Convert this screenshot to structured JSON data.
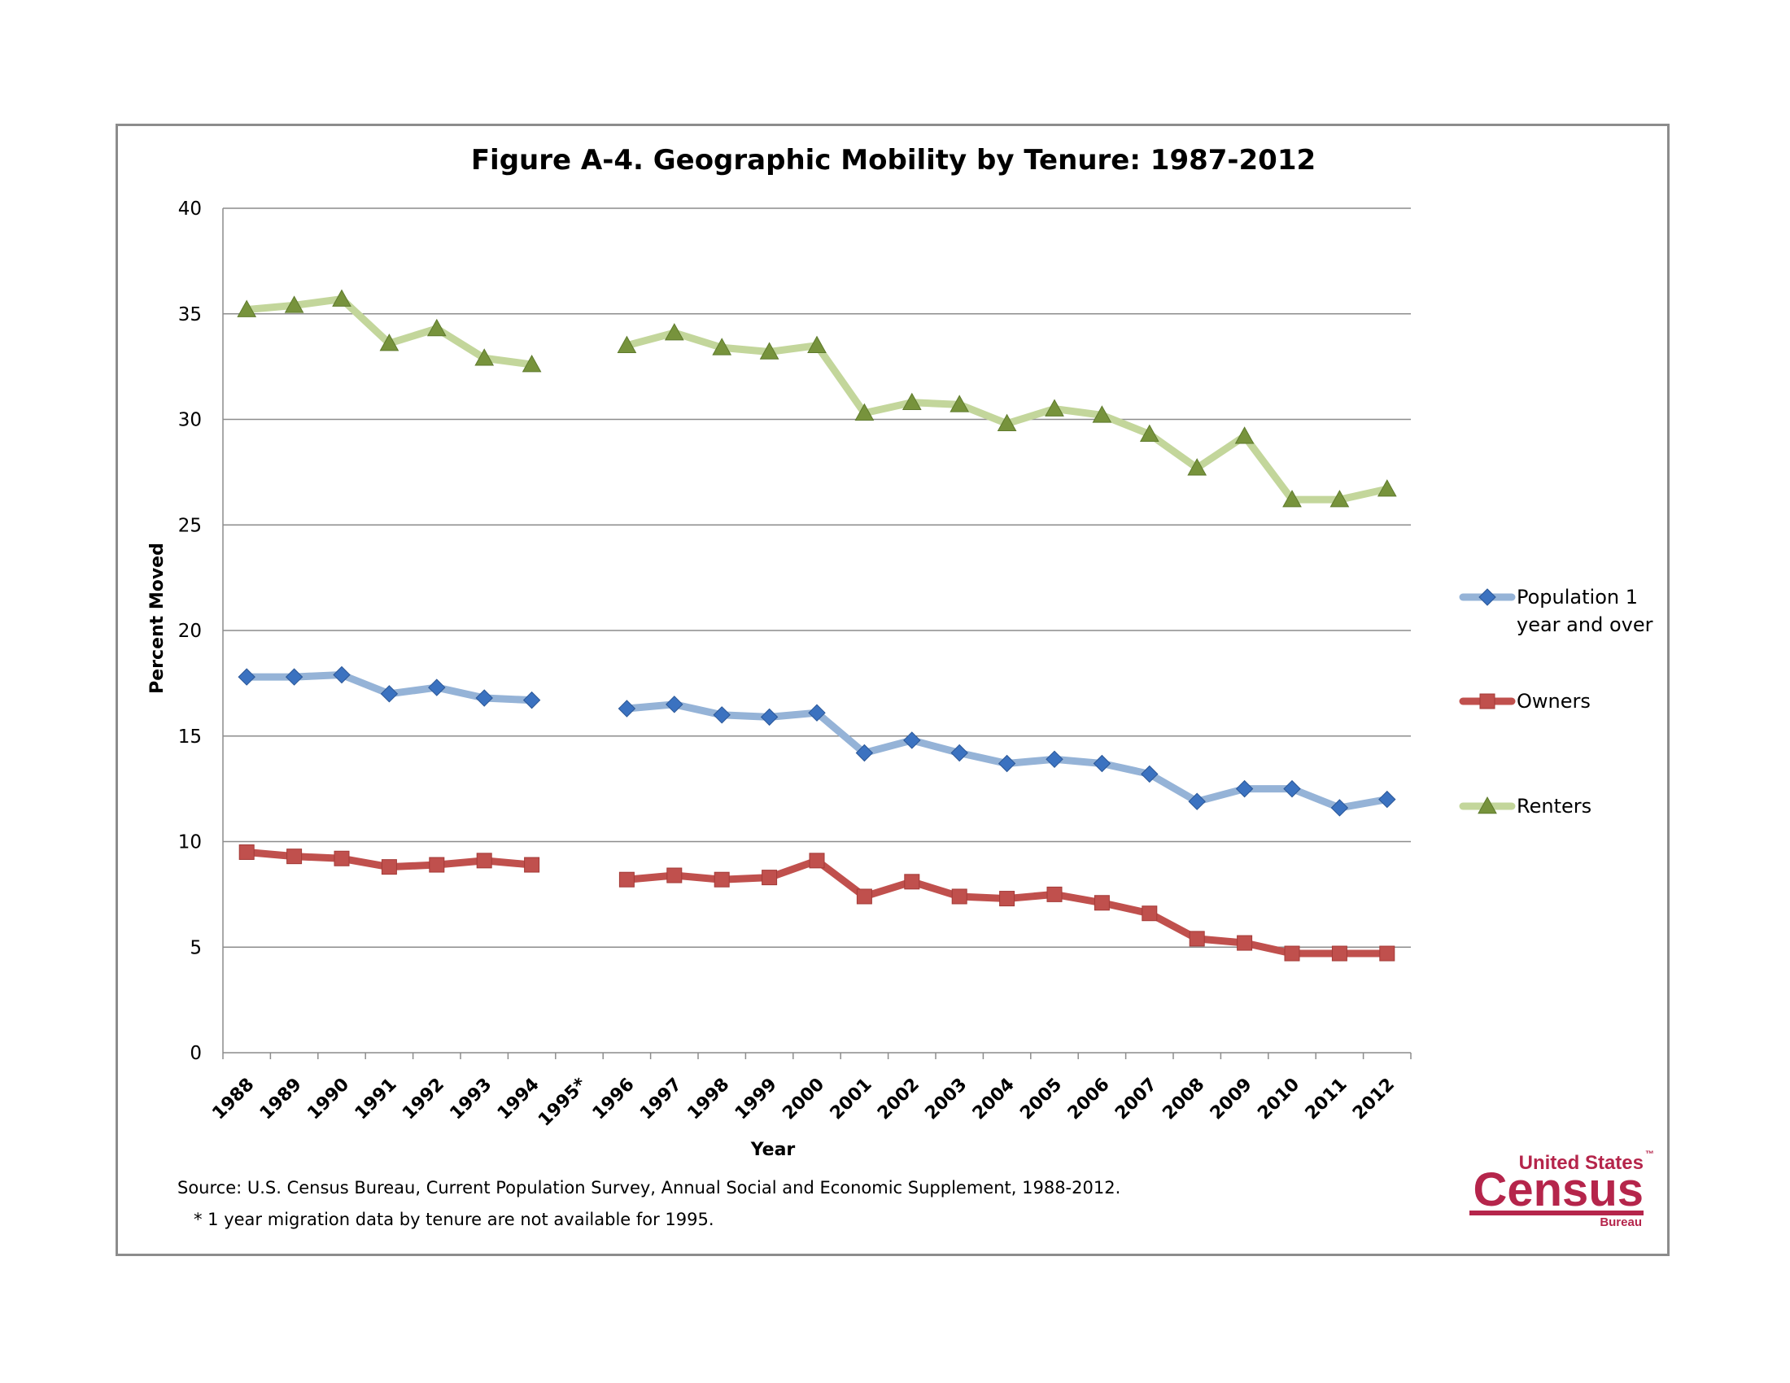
{
  "chart_data": {
    "type": "line",
    "title": "Figure A-4. Geographic Mobility by Tenure: 1987-2012",
    "xlabel": "Year",
    "ylabel": "Percent Moved",
    "ylim": [
      0,
      40
    ],
    "yticks": [
      "0",
      "5",
      "10",
      "15",
      "20",
      "25",
      "30",
      "35",
      "40"
    ],
    "grid": true,
    "legend_position": "right",
    "categories": [
      "1988",
      "1989",
      "1990",
      "1991",
      "1992",
      "1993",
      "1994",
      "1995*",
      "1996",
      "1997",
      "1998",
      "1999",
      "2000",
      "2001",
      "2002",
      "2003",
      "2004",
      "2005",
      "2006",
      "2007",
      "2008",
      "2009",
      "2010",
      "2011",
      "2012"
    ],
    "series": [
      {
        "name": "Population 1 year and over",
        "legend_lines": [
          "Population 1",
          "year and over"
        ],
        "marker": "diamond",
        "line_color": "#95b3d7",
        "marker_color": "#3b72c0",
        "values": [
          17.8,
          17.8,
          17.9,
          17.0,
          17.3,
          16.8,
          16.7,
          null,
          16.3,
          16.5,
          16.0,
          15.9,
          16.1,
          14.2,
          14.8,
          14.2,
          13.7,
          13.9,
          13.7,
          13.2,
          11.9,
          12.5,
          12.5,
          11.6,
          12.0
        ]
      },
      {
        "name": "Owners",
        "legend_lines": [
          "Owners"
        ],
        "marker": "square",
        "line_color": "#c0504d",
        "marker_color": "#c0504d",
        "values": [
          9.5,
          9.3,
          9.2,
          8.8,
          8.9,
          9.1,
          8.9,
          null,
          8.2,
          8.4,
          8.2,
          8.3,
          9.1,
          7.4,
          8.1,
          7.4,
          7.3,
          7.5,
          7.1,
          6.6,
          5.4,
          5.2,
          4.7,
          4.7,
          4.7
        ]
      },
      {
        "name": "Renters",
        "legend_lines": [
          "Renters"
        ],
        "marker": "triangle",
        "line_color": "#c3d69b",
        "marker_color": "#77933c",
        "values": [
          35.2,
          35.4,
          35.7,
          33.6,
          34.3,
          32.9,
          32.6,
          null,
          33.5,
          34.1,
          33.4,
          33.2,
          33.5,
          30.3,
          30.8,
          30.7,
          29.8,
          30.5,
          30.2,
          29.3,
          27.7,
          29.2,
          26.2,
          26.2,
          26.7
        ]
      }
    ]
  },
  "notes": {
    "source": "Source: U.S. Census Bureau, Current Population Survey, Annual Social and Economic Supplement, 1988-2012.",
    "footnote": "* 1 year migration data by tenure are not available for 1995."
  },
  "logo": {
    "line1": "United States",
    "trademark": "™",
    "line2": "Census",
    "line3": "Bureau",
    "color": "#b5254b"
  }
}
